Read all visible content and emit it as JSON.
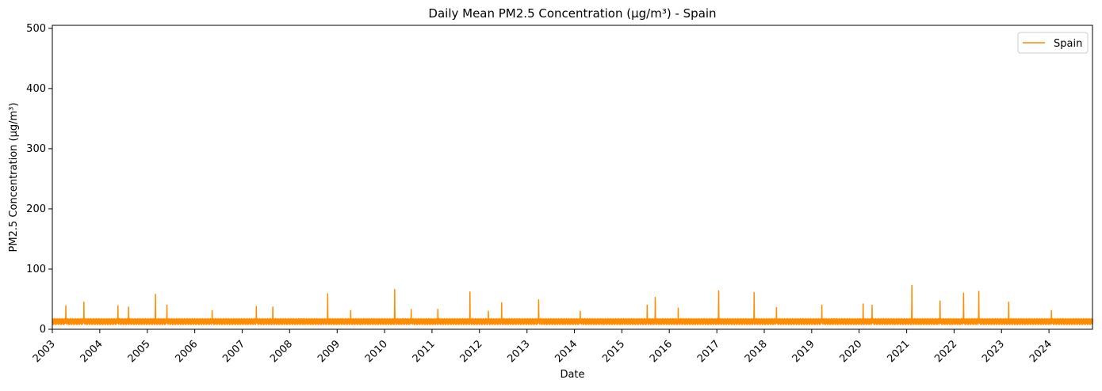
{
  "chart_data": {
    "type": "line",
    "title": "Daily Mean PM2.5 Concentration (µg/m³) - Spain",
    "xlabel": "Date",
    "ylabel": "PM2.5 Concentration (µg/m³)",
    "xlim": [
      "2003-01-01",
      "2024-12-01"
    ],
    "ylim": [
      0,
      505
    ],
    "x_ticks": [
      "2003",
      "2004",
      "2005",
      "2006",
      "2007",
      "2008",
      "2009",
      "2010",
      "2011",
      "2012",
      "2013",
      "2014",
      "2015",
      "2016",
      "2017",
      "2018",
      "2019",
      "2020",
      "2021",
      "2022",
      "2023",
      "2024"
    ],
    "y_ticks": [
      0,
      100,
      200,
      300,
      400,
      500
    ],
    "grid": false,
    "legend_position": "top-right",
    "series": [
      {
        "name": "Spain",
        "color": "#ff8c00",
        "resolution": "daily",
        "baseline_pattern_ugm3": [
          14,
          10,
          16,
          12,
          8,
          18,
          11,
          13,
          9,
          15,
          12,
          7,
          17,
          10,
          13,
          11,
          19,
          9,
          12,
          14
        ],
        "peaks": [
          {
            "date": "2003-04-15",
            "value": 39
          },
          {
            "date": "2003-09-01",
            "value": 45
          },
          {
            "date": "2004-05-20",
            "value": 39
          },
          {
            "date": "2004-08-10",
            "value": 37
          },
          {
            "date": "2005-03-05",
            "value": 58
          },
          {
            "date": "2005-06-01",
            "value": 40
          },
          {
            "date": "2006-05-15",
            "value": 31
          },
          {
            "date": "2007-04-20",
            "value": 38
          },
          {
            "date": "2007-08-25",
            "value": 37
          },
          {
            "date": "2008-10-20",
            "value": 59
          },
          {
            "date": "2009-04-15",
            "value": 31
          },
          {
            "date": "2010-03-20",
            "value": 66
          },
          {
            "date": "2010-07-25",
            "value": 33
          },
          {
            "date": "2011-02-15",
            "value": 33
          },
          {
            "date": "2011-10-20",
            "value": 62
          },
          {
            "date": "2012-03-10",
            "value": 30
          },
          {
            "date": "2012-06-20",
            "value": 44
          },
          {
            "date": "2013-04-01",
            "value": 49
          },
          {
            "date": "2014-02-15",
            "value": 30
          },
          {
            "date": "2015-07-15",
            "value": 40
          },
          {
            "date": "2015-09-15",
            "value": 53
          },
          {
            "date": "2016-03-10",
            "value": 35
          },
          {
            "date": "2017-01-15",
            "value": 64
          },
          {
            "date": "2017-10-15",
            "value": 61
          },
          {
            "date": "2018-04-05",
            "value": 36
          },
          {
            "date": "2019-03-20",
            "value": 40
          },
          {
            "date": "2020-02-01",
            "value": 42
          },
          {
            "date": "2020-04-10",
            "value": 40
          },
          {
            "date": "2021-02-10",
            "value": 73
          },
          {
            "date": "2021-09-15",
            "value": 47
          },
          {
            "date": "2022-03-15",
            "value": 60
          },
          {
            "date": "2022-07-10",
            "value": 63
          },
          {
            "date": "2023-02-25",
            "value": 45
          },
          {
            "date": "2024-01-20",
            "value": 31
          }
        ]
      }
    ]
  }
}
